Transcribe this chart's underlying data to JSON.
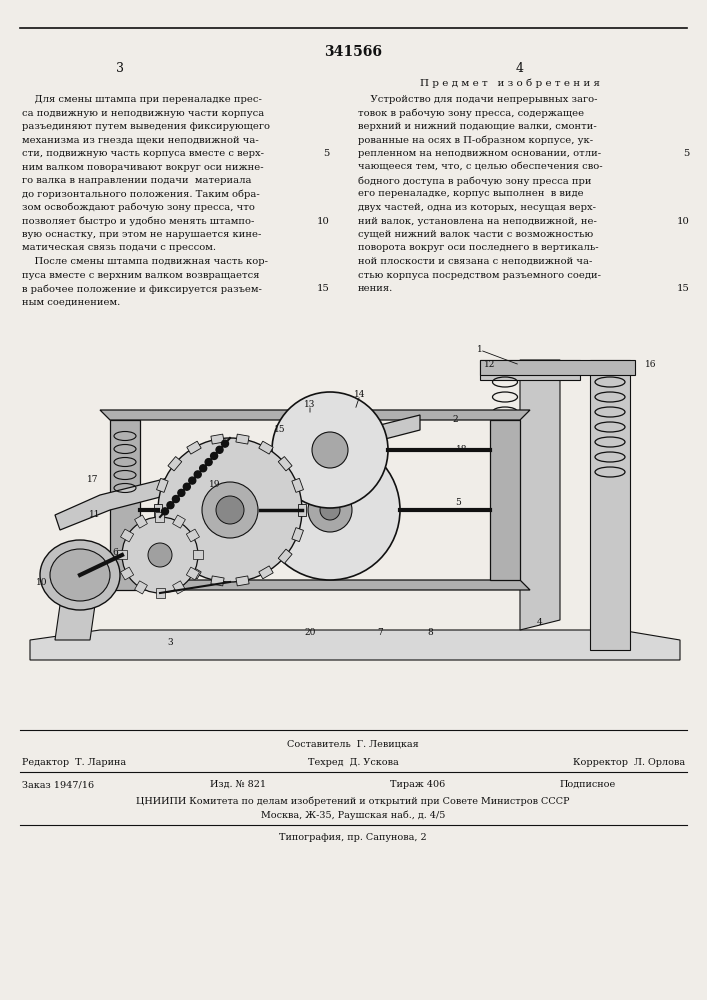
{
  "patent_number": "341566",
  "col_left_header": "3",
  "col_right_header": "4",
  "right_section_title": "П р е д м е т   и з о б р е т е н и я",
  "left_text_lines": [
    "    Для смены штампа при переналадке прес-",
    "са подвижную и неподвижную части корпуса",
    "разъединяют путем выведения фиксирующего",
    "механизма из гнезда щеки неподвижной ча-",
    "сти, подвижную часть корпуса вместе с верх-",
    "ним валком поворачивают вокруг оси нижне-",
    "го валка в направлении подачи  материала",
    "до горизонтального положения. Таким обра-",
    "зом освобождают рабочую зону пресса, что",
    "позволяет быстро и удобно менять штампо-",
    "вую оснастку, при этом не нарушается кине-",
    "матическая связь подачи с прессом.",
    "    После смены штампа подвижная часть кор-",
    "пуса вместе с верхним валком возвращается",
    "в рабочее положение и фиксируется разъем-",
    "ным соединением."
  ],
  "right_text_lines": [
    "    Устройство для подачи непрерывных заго-",
    "товок в рабочую зону пресса, содержащее",
    "верхний и нижний подающие валки, смонти-",
    "рованные на осях в П-образном корпусе, ук-",
    "репленном на неподвижном основании, отли-",
    "чающееся тем, что, с целью обеспечения сво-",
    "бодного доступа в рабочую зону пресса при",
    "его переналадке, корпус выполнен  в виде",
    "двух частей, одна из которых, несущая верх-",
    "ний валок, установлена на неподвижной, не-",
    "сущей нижний валок части с возможностью",
    "поворота вокруг оси последнего в вертикаль-",
    "ной плоскости и связана с неподвижной ча-",
    "стью корпуса посредством разъемного соеди-",
    "нения."
  ],
  "left_line_numbers": {
    "4": 5,
    "9": 10,
    "14": 15
  },
  "right_line_numbers": {
    "4": 5,
    "9": 10,
    "14": 15
  },
  "bottom_composer_label": "Составитель  Г. Левицкая",
  "bottom_editor_line": "Редактор  Т. Ларина",
  "bottom_tech_line": "Техред  Д. Ускова",
  "bottom_corrector_line": "Корректор  Л. Орлова",
  "bottom_order": "Заказ 1947/16",
  "bottom_issue": "Изд. № 821",
  "bottom_circulation": "Тираж 406",
  "bottom_subscription": "Подписное",
  "bottom_institute": "ЦНИИПИ Комитета по делам изобретений и открытий при Совете Министров СССР",
  "bottom_address": "Москва, Ж-35, Раушская наб., д. 4/5",
  "bottom_printing": "Типография, пр. Сапунова, 2",
  "bg_color": "#f0ede8",
  "text_color": "#111111",
  "font_size_body": 7.2,
  "font_size_header": 9,
  "font_size_patent": 10
}
